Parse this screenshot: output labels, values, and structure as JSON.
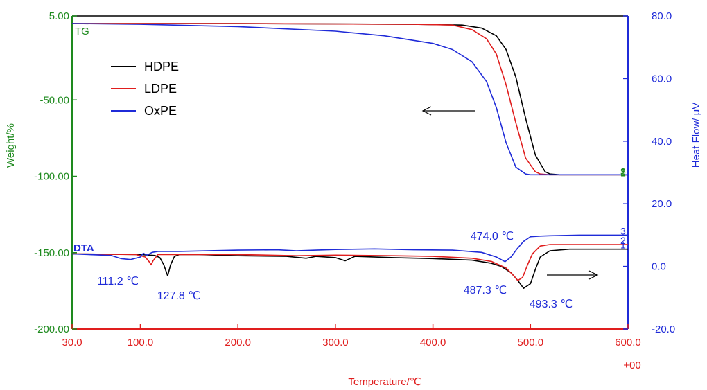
{
  "chart_data": {
    "type": "line",
    "title": "",
    "xlabel": "Temperature/℃",
    "x_multiplier": "+00",
    "xlim": [
      30,
      600
    ],
    "x_ticks": [
      "30.0",
      "100.0",
      "200.0",
      "300.0",
      "400.0",
      "500.0",
      "600.0"
    ],
    "x_tick_values": [
      30,
      100,
      200,
      300,
      400,
      500,
      600
    ],
    "y_left": {
      "label": "Weight/%",
      "range": [
        -200,
        5
      ],
      "ticks": [
        "5.00",
        "-50.00",
        "-100.00",
        "-150.00",
        "-200.00"
      ],
      "tick_values": [
        5,
        -50,
        -100,
        -150,
        -200
      ]
    },
    "y_right": {
      "label": "Heat Flow/ μV",
      "range": [
        -20,
        80
      ],
      "ticks": [
        "80.0",
        "60.0",
        "40.0",
        "20.0",
        "0.0",
        "-20.0"
      ],
      "tick_values": [
        80,
        60,
        40,
        20,
        0,
        -20
      ]
    },
    "legend": [
      {
        "name": "HDPE",
        "color": "#000000"
      },
      {
        "name": "LDPE",
        "color": "#e01e1e"
      },
      {
        "name": "OxPE",
        "color": "#1f2bd8"
      }
    ],
    "curve_labels": {
      "tg": "TG",
      "dta": "DTA"
    },
    "end_markers": {
      "tg": [
        "1",
        "2",
        "3"
      ],
      "dta": [
        "1",
        "2",
        "3"
      ]
    },
    "tg_series": [
      {
        "name": "HDPE",
        "axis": "left",
        "x": [
          30,
          200,
          380,
          430,
          450,
          465,
          475,
          485,
          495,
          505,
          515,
          520,
          530,
          600
        ],
        "y": [
          0,
          0,
          -0.5,
          -1,
          -3,
          -8,
          -17,
          -35,
          -62,
          -86,
          -97,
          -98.5,
          -99,
          -99
        ]
      },
      {
        "name": "LDPE",
        "axis": "left",
        "x": [
          30,
          200,
          380,
          420,
          440,
          455,
          465,
          475,
          485,
          495,
          505,
          510,
          520,
          600
        ],
        "y": [
          0,
          0,
          -0.5,
          -1,
          -4,
          -10,
          -20,
          -40,
          -65,
          -88,
          -97,
          -98.5,
          -99,
          -99
        ]
      },
      {
        "name": "OxPE",
        "axis": "left",
        "x": [
          30,
          100,
          200,
          300,
          350,
          400,
          420,
          440,
          455,
          465,
          475,
          485,
          495,
          500,
          510,
          600
        ],
        "y": [
          0,
          -0.5,
          -2,
          -5,
          -8,
          -13,
          -17,
          -25,
          -38,
          -55,
          -78,
          -94,
          -98.5,
          -99,
          -99,
          -99
        ]
      }
    ],
    "dta_series": [
      {
        "name": "HDPE",
        "axis": "right",
        "x": [
          30,
          100,
          115,
          120,
          124,
          128,
          131,
          135,
          140,
          160,
          200,
          250,
          270,
          280,
          300,
          310,
          320,
          360,
          400,
          440,
          460,
          470,
          480,
          487,
          493,
          500,
          505,
          510,
          520,
          540,
          600
        ],
        "y": [
          4,
          3.8,
          3.5,
          2.8,
          0.5,
          -3,
          0.5,
          3.2,
          3.8,
          3.8,
          3.4,
          3.2,
          2.6,
          3.2,
          2.8,
          1.8,
          3.2,
          2.8,
          2.5,
          2,
          1,
          0,
          -2,
          -4.5,
          -7,
          -5.5,
          -1,
          3,
          5,
          5.5,
          5.5
        ]
      },
      {
        "name": "LDPE",
        "axis": "right",
        "x": [
          30,
          95,
          105,
          109,
          111,
          113,
          118,
          130,
          200,
          260,
          300,
          360,
          400,
          440,
          460,
          475,
          483,
          487,
          492,
          497,
          502,
          510,
          520,
          560,
          600
        ],
        "y": [
          4,
          3.8,
          3,
          1.5,
          0.5,
          1.8,
          3.8,
          3.8,
          3.8,
          3.4,
          3.6,
          3.4,
          3.2,
          2.6,
          1.6,
          -0.5,
          -3,
          -4.5,
          -3.5,
          0.5,
          4,
          6.5,
          7,
          7,
          7
        ]
      },
      {
        "name": "OxPE",
        "axis": "right",
        "x": [
          30,
          70,
          80,
          90,
          100,
          103,
          107,
          112,
          118,
          140,
          200,
          240,
          260,
          280,
          300,
          340,
          380,
          420,
          450,
          465,
          474,
          480,
          486,
          493,
          500,
          510,
          520,
          550,
          600
        ],
        "y": [
          4,
          3.5,
          2.5,
          2.2,
          3,
          4.2,
          3.6,
          4.5,
          4.8,
          4.8,
          5.2,
          5.3,
          5,
          5.2,
          5.4,
          5.6,
          5.3,
          5.2,
          4.5,
          3,
          1.5,
          3,
          5.5,
          8,
          9.5,
          9.7,
          9.8,
          10,
          10
        ]
      }
    ],
    "annotations": [
      {
        "text": "111.2 ℃",
        "x": 111.2
      },
      {
        "text": "127.8 ℃",
        "x": 127.8
      },
      {
        "text": "474.0 ℃",
        "x": 474.0
      },
      {
        "text": "487.3 ℃",
        "x": 487.3
      },
      {
        "text": "493.3 ℃",
        "x": 493.3
      }
    ],
    "arrows": [
      {
        "points_to": "left-axis",
        "near_series": "TG"
      },
      {
        "points_to": "right-axis",
        "near_series": "DTA"
      }
    ],
    "grid": false,
    "legend_position": "top-left"
  }
}
